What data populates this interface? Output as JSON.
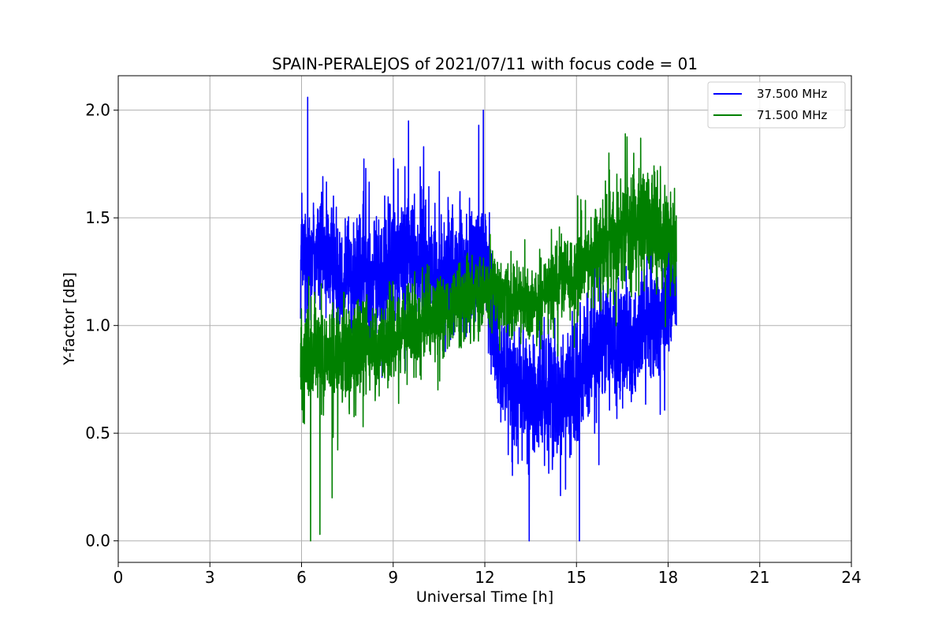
{
  "chart_data": {
    "type": "line",
    "title": "SPAIN-PERALEJOS of 2021/07/11 with focus code = 01",
    "xlabel": "Universal Time [h]",
    "ylabel": "Y-factor [dB]",
    "xlim": [
      0,
      24
    ],
    "ylim": [
      -0.1,
      2.16
    ],
    "xticks": [
      0,
      3,
      6,
      9,
      12,
      15,
      18,
      21,
      24
    ],
    "xtick_labels": [
      "0",
      "3",
      "6",
      "9",
      "12",
      "15",
      "18",
      "21",
      "24"
    ],
    "yticks": [
      0.0,
      0.5,
      1.0,
      1.5,
      2.0
    ],
    "ytick_labels": [
      "0.0",
      "0.5",
      "1.0",
      "1.5",
      "2.0"
    ],
    "grid": true,
    "legend_position": "top-right",
    "series": [
      {
        "name": "37.500 MHz",
        "color": "#0000ff",
        "x_range": [
          5.97,
          18.27
        ],
        "envelope": {
          "x": [
            6.0,
            6.5,
            7.0,
            7.5,
            8.0,
            8.5,
            9.0,
            9.5,
            10.0,
            10.5,
            11.0,
            11.5,
            12.0,
            12.5,
            13.0,
            13.5,
            14.0,
            14.5,
            15.0,
            15.5,
            16.0,
            16.5,
            17.0,
            17.5,
            18.0,
            18.25
          ],
          "center": [
            1.3,
            1.35,
            1.3,
            1.25,
            1.25,
            1.2,
            1.3,
            1.35,
            1.3,
            1.2,
            1.25,
            1.25,
            1.3,
            0.85,
            0.7,
            0.65,
            0.7,
            0.7,
            0.75,
            0.85,
            0.95,
            0.9,
            0.95,
            1.0,
            1.1,
            1.2
          ],
          "amplitude": [
            0.35,
            0.35,
            0.35,
            0.35,
            0.35,
            0.35,
            0.35,
            0.35,
            0.35,
            0.35,
            0.35,
            0.35,
            0.35,
            0.35,
            0.35,
            0.35,
            0.35,
            0.35,
            0.35,
            0.35,
            0.35,
            0.35,
            0.35,
            0.35,
            0.35,
            0.35
          ]
        },
        "peaks": [
          [
            6.2,
            2.06
          ],
          [
            9.5,
            1.95
          ],
          [
            11.95,
            2.0
          ],
          [
            13.45,
            0.0
          ],
          [
            15.1,
            0.0
          ],
          [
            10.0,
            1.83
          ],
          [
            11.8,
            1.93
          ]
        ]
      },
      {
        "name": "71.500 MHz",
        "color": "#008000",
        "x_range": [
          5.97,
          18.27
        ],
        "envelope": {
          "x": [
            6.0,
            6.5,
            7.0,
            7.5,
            8.0,
            8.5,
            9.0,
            9.5,
            10.0,
            10.5,
            11.0,
            11.5,
            12.0,
            12.5,
            13.0,
            13.5,
            14.0,
            14.5,
            15.0,
            15.5,
            16.0,
            16.5,
            17.0,
            17.5,
            18.0,
            18.25
          ],
          "center": [
            0.85,
            0.85,
            0.85,
            0.88,
            0.9,
            0.92,
            0.95,
            0.98,
            1.0,
            1.05,
            1.1,
            1.12,
            1.15,
            1.15,
            1.1,
            1.12,
            1.15,
            1.2,
            1.25,
            1.3,
            1.4,
            1.45,
            1.45,
            1.45,
            1.4,
            1.4
          ],
          "amplitude": [
            0.3,
            0.3,
            0.28,
            0.28,
            0.28,
            0.26,
            0.25,
            0.25,
            0.24,
            0.22,
            0.2,
            0.2,
            0.2,
            0.2,
            0.2,
            0.2,
            0.22,
            0.22,
            0.22,
            0.25,
            0.3,
            0.3,
            0.3,
            0.3,
            0.3,
            0.25
          ]
        },
        "peaks": [
          [
            6.3,
            0.0
          ],
          [
            6.6,
            0.03
          ],
          [
            16.6,
            1.89
          ],
          [
            17.1,
            1.87
          ],
          [
            7.0,
            0.2
          ]
        ]
      }
    ]
  }
}
